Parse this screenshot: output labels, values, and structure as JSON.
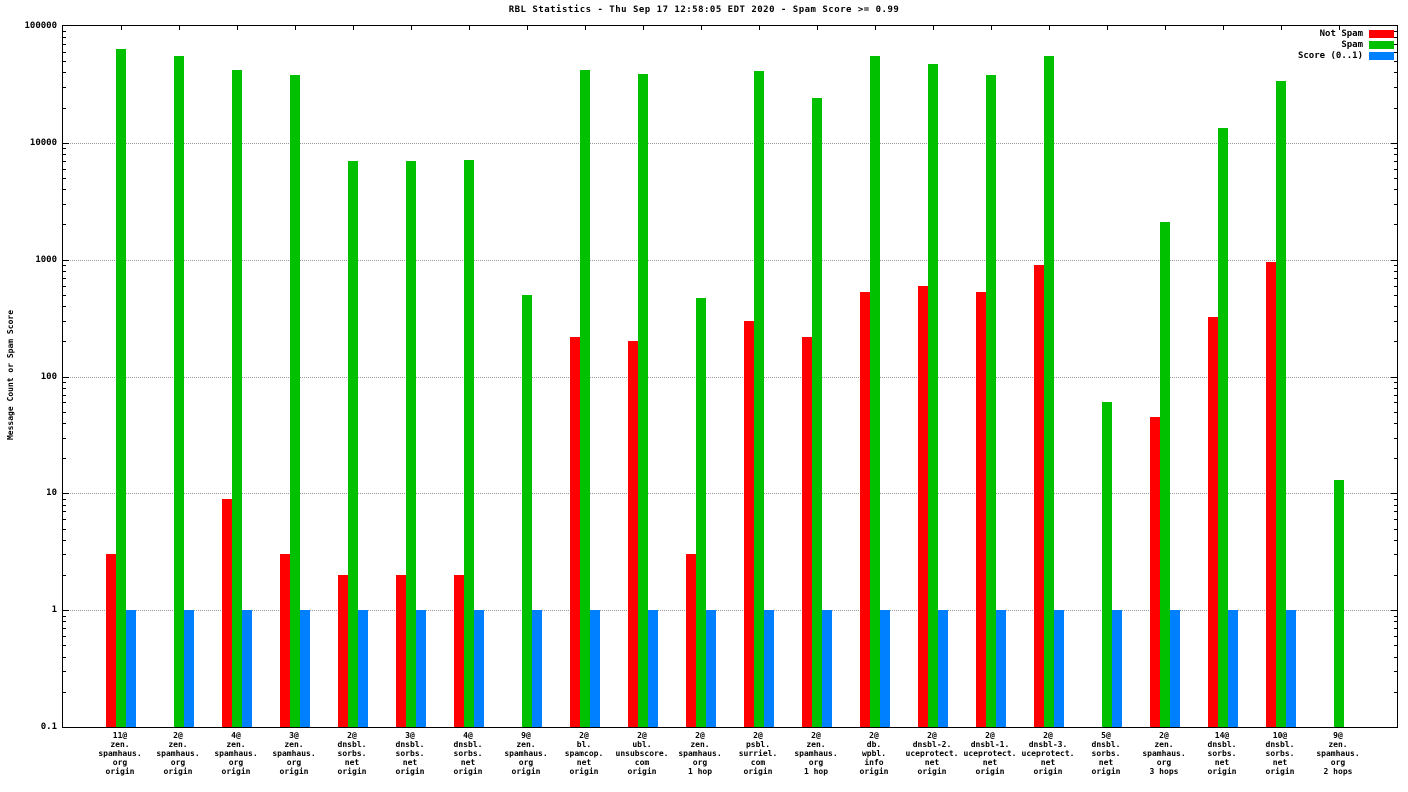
{
  "chart_data": {
    "type": "bar",
    "title": "RBL Statistics - Thu Sep 17 12:58:05 EDT 2020 - Spam Score >= 0.99",
    "ylabel": "Message Count or Spam Score",
    "xlabel": "",
    "yscale": "log",
    "ylim": [
      0.1,
      100000
    ],
    "yticks": [
      100000,
      10000,
      1000,
      100,
      10,
      1,
      0.1
    ],
    "ytick_labels": [
      "100000",
      "10000",
      "1000",
      "100",
      "10",
      "1",
      "0.1"
    ],
    "grid": "horizontal-dotted",
    "legend_position": "top-right",
    "categories": [
      [
        "11@",
        "zen.",
        "spamhaus.",
        "org",
        "origin"
      ],
      [
        "2@",
        "zen.",
        "spamhaus.",
        "org",
        "origin"
      ],
      [
        "4@",
        "zen.",
        "spamhaus.",
        "org",
        "origin"
      ],
      [
        "3@",
        "zen.",
        "spamhaus.",
        "org",
        "origin"
      ],
      [
        "2@",
        "dnsbl.",
        "sorbs.",
        "net",
        "origin"
      ],
      [
        "3@",
        "dnsbl.",
        "sorbs.",
        "net",
        "origin"
      ],
      [
        "4@",
        "dnsbl.",
        "sorbs.",
        "net",
        "origin"
      ],
      [
        "9@",
        "zen.",
        "spamhaus.",
        "org",
        "origin"
      ],
      [
        "2@",
        "bl.",
        "spamcop.",
        "net",
        "origin"
      ],
      [
        "2@",
        "ubl.",
        "unsubscore.",
        "com",
        "origin"
      ],
      [
        "2@",
        "zen.",
        "spamhaus.",
        "org",
        "1 hop"
      ],
      [
        "2@",
        "psbl.",
        "surriel.",
        "com",
        "origin"
      ],
      [
        "2@",
        "zen.",
        "spamhaus.",
        "org",
        "1 hop"
      ],
      [
        "2@",
        "db.",
        "wpbl.",
        "info",
        "origin"
      ],
      [
        "2@",
        "dnsbl-2.",
        "uceprotect.",
        "net",
        "origin"
      ],
      [
        "2@",
        "dnsbl-1.",
        "uceprotect.",
        "net",
        "origin"
      ],
      [
        "2@",
        "dnsbl-3.",
        "uceprotect.",
        "net",
        "origin"
      ],
      [
        "5@",
        "dnsbl.",
        "sorbs.",
        "net",
        "origin"
      ],
      [
        "2@",
        "zen.",
        "spamhaus.",
        "org",
        "3 hops"
      ],
      [
        "14@",
        "dnsbl.",
        "sorbs.",
        "net",
        "origin"
      ],
      [
        "10@",
        "dnsbl.",
        "sorbs.",
        "net",
        "origin"
      ],
      [
        "9@",
        "zen.",
        "spamhaus.",
        "org",
        "2 hops"
      ]
    ],
    "series": [
      {
        "name": "Not Spam",
        "color": "#ff0000",
        "values": [
          3,
          null,
          9,
          3,
          2,
          2,
          2,
          null,
          220,
          200,
          3,
          300,
          220,
          530,
          590,
          530,
          900,
          null,
          45,
          320,
          950,
          null
        ]
      },
      {
        "name": "Spam",
        "color": "#00c000",
        "values": [
          63000,
          55000,
          42000,
          38000,
          7000,
          7000,
          7100,
          500,
          42000,
          39000,
          470,
          41000,
          24000,
          55000,
          47000,
          38000,
          55000,
          60,
          2100,
          13500,
          34000,
          13
        ]
      },
      {
        "name": "Score (0..1)",
        "color": "#0080ff",
        "values": [
          1,
          1,
          1,
          1,
          1,
          1,
          1,
          1,
          1,
          1,
          1,
          1,
          1,
          1,
          1,
          1,
          1,
          1,
          1,
          1,
          1,
          null
        ]
      }
    ]
  }
}
